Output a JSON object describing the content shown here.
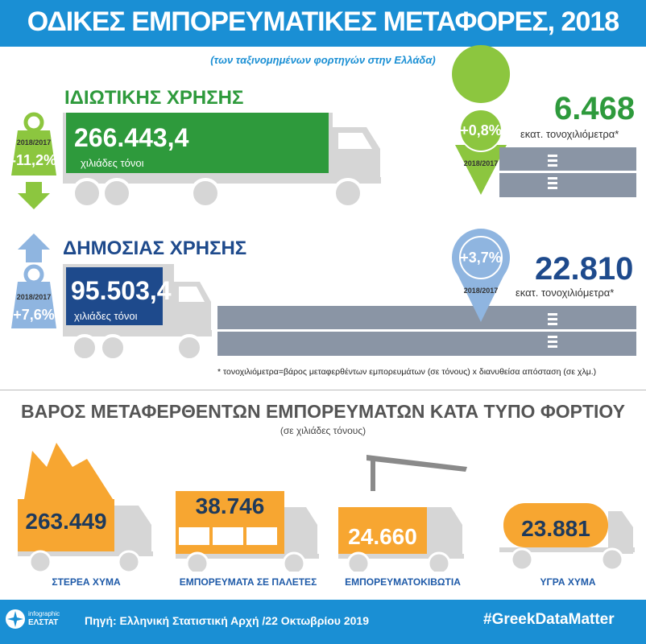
{
  "title": "ΟΔΙΚΕΣ ΕΜΠΟΡΕΥΜΑΤΙΚΕΣ ΜΕΤΑΦΟΡΕΣ, 2018",
  "subtitle": "(των ταξινομημένων φορτηγών στην Ελλάδα)",
  "private_use": {
    "label": "ΙΔΙΩΤΙΚΗΣ ΧΡΗΣΗΣ",
    "tonnes": "266.443,4",
    "tonnes_unit": "χιλιάδες τόνοι",
    "weight_change_year": "2018/2017",
    "weight_change": "-11,2%",
    "tkm_change": "+0,8%",
    "tkm_change_year": "2018/2017",
    "tkm_value": "6.468",
    "tkm_unit": "εκατ. τονοχιλιόμετρα*"
  },
  "public_use": {
    "label": "ΔΗΜΟΣΙΑΣ ΧΡΗΣΗΣ",
    "tonnes": "95.503,4",
    "tonnes_unit": "χιλιάδες τόνοι",
    "weight_change_year": "2018/2017",
    "weight_change": "+7,6%",
    "tkm_change": "+3,7%",
    "tkm_change_year": "2018/2017",
    "tkm_value": "22.810",
    "tkm_unit": "εκατ. τονοχιλιόμετρα*"
  },
  "footnote": "* τονοχιλιόμετρα=βάρος μεταφερθέντων εμπορευμάτων (σε τόνους) x διανυθείσα απόσταση (σε χλμ.)",
  "section2": {
    "title": "ΒΑΡΟΣ ΜΕΤΑΦΕΡΘΕΝΤΩΝ ΕΜΠΟΡΕΥΜΑΤΩΝ ΚΑΤΑ ΤΥΠΟ ΦΟΡΤΙΟΥ",
    "subtitle": "(σε χιλιάδες τόνους)",
    "items": [
      {
        "value": "263.449",
        "label": "ΣΤΕΡΕΑ ΧΥΜΑ"
      },
      {
        "value": "38.746",
        "label": "ΕΜΠΟΡΕΥΜΑΤΑ ΣΕ ΠΑΛΕΤΕΣ"
      },
      {
        "value": "24.660",
        "label": "ΕΜΠΟΡΕΥΜΑΤΟΚΙΒΩΤΙΑ"
      },
      {
        "value": "23.881",
        "label": "ΥΓΡΑ ΧΥΜΑ"
      }
    ]
  },
  "footer": {
    "logo_line1": "infographic",
    "logo_line2": "ΕΛΣΤΑΤ",
    "source": "Πηγή: Ελληνική Στατιστική Αρχή /22 Οκτωβρίου 2019",
    "hashtag": "#GreekDataMatter"
  },
  "colors": {
    "brand_blue": "#1a8fd4",
    "private_green": "#2e9a3c",
    "public_navy": "#1e4a8c",
    "weight_green": "#8cc63f",
    "pin_blue": "#8fb5e0",
    "road_gray": "#8a95a5",
    "cargo_orange": "#f7a631"
  }
}
